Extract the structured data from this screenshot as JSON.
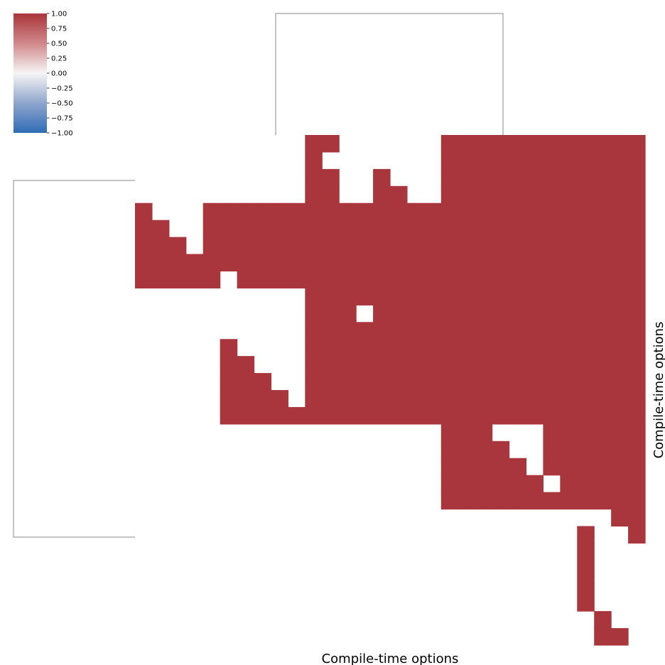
{
  "chart_data": {
    "type": "heatmap",
    "xlabel": "Compile-time options",
    "ylabel": "Compile-time options",
    "zlim": [
      -1.0,
      1.0
    ],
    "colormap": "vlag (blue -> white -> red)",
    "colors": {
      "low": "#2f6cb5",
      "mid": "#f7f5f5",
      "high": "#a9363c",
      "dendrogram": "#8a8a8a"
    },
    "colorbar": {
      "position": "top-left",
      "ticks": [
        1.0,
        0.75,
        0.5,
        0.25,
        0.0,
        -0.25,
        -0.5,
        -0.75,
        -1.0
      ],
      "tick_labels": [
        "1.00",
        "0.75",
        "0.50",
        "0.25",
        "0.00",
        "−0.25",
        "−0.50",
        "−0.75",
        "−1.00"
      ]
    },
    "dendrograms": {
      "row": "left",
      "col": "top"
    },
    "n_rows": 30,
    "n_cols": 30,
    "cell_values": "1 where the cell is red, 0 where it is white",
    "matrix": [
      "000000000011000000111111111111",
      "000000000010000000111111111111",
      "000000000011001000111111111111",
      "000000000011001100111111111111",
      "100011111111111111111111111111",
      "110011111111111111111111111111",
      "111011111111111111111111111111",
      "111111111111111111111111111111",
      "111110111111111111111111111111",
      "000000000011111111111111111111",
      "000000000011101111111111111111",
      "000000000011111111111111111111",
      "000001000011111111111111111111",
      "000001100011111111111111111111",
      "000001110011111111111111111111",
      "000001111011111111111111111111",
      "000001111111111111111111111111",
      "000000000000000000111000111111",
      "000000000000000000111100111111",
      "000000000000000000111110111111",
      "000000000000000000111111011111",
      "000000000000000000111111111111",
      "000000000000000000000000000011",
      "000000000000000000000000001001",
      "000000000000000000000000001000",
      "000000000000000000000000001000",
      "000000000000000000000000001000",
      "000000000000000000000000001000",
      "000000000000000000000000000100",
      "000000000000000000000000000110"
    ]
  }
}
